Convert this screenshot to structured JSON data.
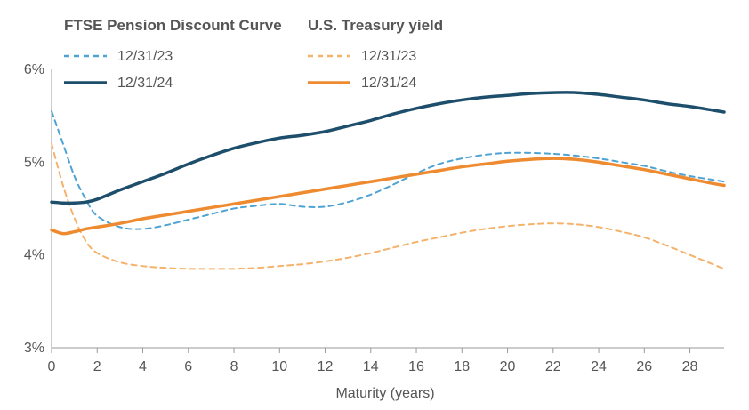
{
  "chart_data": {
    "type": "line",
    "title": "",
    "xlabel": "Maturity (years)",
    "ylabel": "",
    "xlim": [
      0,
      29.5
    ],
    "ylim": [
      3,
      6
    ],
    "x_ticks": [
      0,
      2,
      4,
      6,
      8,
      10,
      12,
      14,
      16,
      18,
      20,
      22,
      24,
      26,
      28
    ],
    "y_ticks": [
      3,
      4,
      5,
      6
    ],
    "y_tick_labels": [
      "3%",
      "4%",
      "5%",
      "6%"
    ],
    "legend": {
      "groups": [
        {
          "title": "FTSE Pension Discount Curve",
          "entries": [
            "12/31/23",
            "12/31/24"
          ]
        },
        {
          "title": "U.S. Treasury yield",
          "entries": [
            "12/31/23",
            "12/31/24"
          ]
        }
      ]
    },
    "series": [
      {
        "name": "FTSE Pension Discount Curve 12/31/23",
        "group": "FTSE Pension Discount Curve",
        "label": "12/31/23",
        "color": "#4ea3d4",
        "style": "dashed",
        "x": [
          0,
          0.5,
          1,
          1.5,
          2,
          3,
          4,
          5,
          6,
          7,
          8,
          9,
          10,
          11,
          12,
          13,
          14,
          15,
          16,
          17,
          18,
          19,
          20,
          21,
          22,
          23,
          24,
          25,
          26,
          27,
          28,
          29,
          29.5
        ],
        "values": [
          5.55,
          5.2,
          4.85,
          4.6,
          4.42,
          4.3,
          4.28,
          4.32,
          4.38,
          4.44,
          4.5,
          4.53,
          4.55,
          4.52,
          4.52,
          4.57,
          4.65,
          4.76,
          4.88,
          4.98,
          5.04,
          5.08,
          5.1,
          5.1,
          5.09,
          5.07,
          5.04,
          5.0,
          4.96,
          4.9,
          4.85,
          4.81,
          4.79
        ]
      },
      {
        "name": "FTSE Pension Discount Curve 12/31/24",
        "group": "FTSE Pension Discount Curve",
        "label": "12/31/24",
        "color": "#1d4e6b",
        "style": "solid",
        "x": [
          0,
          0.5,
          1,
          1.5,
          2,
          3,
          4,
          5,
          6,
          7,
          8,
          9,
          10,
          11,
          12,
          13,
          14,
          15,
          16,
          17,
          18,
          19,
          20,
          21,
          22,
          23,
          24,
          25,
          26,
          27,
          28,
          29,
          29.5
        ],
        "values": [
          4.57,
          4.56,
          4.56,
          4.57,
          4.6,
          4.7,
          4.79,
          4.88,
          4.98,
          5.07,
          5.15,
          5.21,
          5.26,
          5.29,
          5.33,
          5.39,
          5.45,
          5.52,
          5.58,
          5.63,
          5.67,
          5.7,
          5.72,
          5.74,
          5.75,
          5.75,
          5.73,
          5.7,
          5.67,
          5.63,
          5.6,
          5.56,
          5.54
        ]
      },
      {
        "name": "U.S. Treasury yield 12/31/23",
        "group": "U.S. Treasury yield",
        "label": "12/31/23",
        "color": "#f5b26b",
        "style": "dashed",
        "x": [
          0,
          0.5,
          1,
          1.5,
          2,
          3,
          4,
          5,
          6,
          7,
          8,
          9,
          10,
          11,
          12,
          13,
          14,
          15,
          16,
          17,
          18,
          19,
          20,
          21,
          22,
          23,
          24,
          25,
          26,
          27,
          28,
          29,
          29.5
        ],
        "values": [
          5.2,
          4.75,
          4.4,
          4.15,
          4.02,
          3.92,
          3.88,
          3.86,
          3.85,
          3.85,
          3.85,
          3.86,
          3.88,
          3.9,
          3.93,
          3.97,
          4.02,
          4.08,
          4.14,
          4.19,
          4.24,
          4.28,
          4.31,
          4.33,
          4.34,
          4.33,
          4.3,
          4.25,
          4.19,
          4.1,
          4.0,
          3.9,
          3.85
        ]
      },
      {
        "name": "U.S. Treasury yield 12/31/24",
        "group": "U.S. Treasury yield",
        "label": "12/31/24",
        "color": "#ee8a2f",
        "style": "solid",
        "x": [
          0,
          0.5,
          1,
          1.5,
          2,
          3,
          4,
          5,
          6,
          7,
          8,
          9,
          10,
          11,
          12,
          13,
          14,
          15,
          16,
          17,
          18,
          19,
          20,
          21,
          22,
          23,
          24,
          25,
          26,
          27,
          28,
          29,
          29.5
        ],
        "values": [
          4.27,
          4.23,
          4.25,
          4.28,
          4.3,
          4.34,
          4.39,
          4.43,
          4.47,
          4.51,
          4.55,
          4.59,
          4.63,
          4.67,
          4.71,
          4.75,
          4.79,
          4.83,
          4.87,
          4.91,
          4.95,
          4.98,
          5.01,
          5.03,
          5.04,
          5.03,
          5.0,
          4.96,
          4.92,
          4.87,
          4.82,
          4.77,
          4.75
        ]
      }
    ]
  }
}
